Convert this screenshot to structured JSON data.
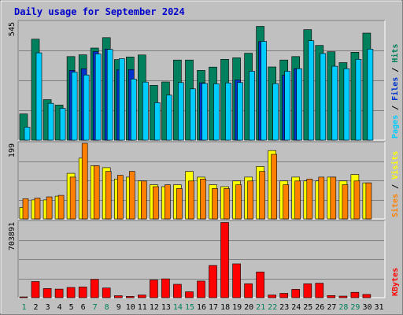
{
  "chart_data": {
    "type": "bar",
    "title": "Daily usage for September 2024",
    "categories": [
      "1",
      "2",
      "3",
      "4",
      "5",
      "6",
      "7",
      "8",
      "9",
      "10",
      "11",
      "12",
      "13",
      "14",
      "15",
      "16",
      "17",
      "18",
      "19",
      "20",
      "21",
      "22",
      "23",
      "24",
      "25",
      "26",
      "27",
      "28",
      "29",
      "30",
      "31"
    ],
    "weekend_days": [
      "1",
      "7",
      "8",
      "14",
      "15",
      "21",
      "22",
      "28",
      "29"
    ],
    "panels": [
      {
        "name": "hits-files-pages",
        "max_label": "545",
        "ylim": [
          0,
          545
        ],
        "side_labels": [
          {
            "text": "Pages",
            "color": "#00ccff"
          },
          {
            "text": "Files",
            "color": "#0033cc"
          },
          {
            "text": "Hits",
            "color": "#00805c"
          }
        ],
        "series": [
          {
            "name": "Hits",
            "color": "#00805c",
            "values": [
              121,
              466,
              187,
              162,
              386,
              394,
              425,
              473,
              372,
              384,
              393,
              253,
              269,
              370,
              370,
              322,
              337,
              373,
              380,
              401,
              525,
              338,
              370,
              386,
              510,
              437,
              408,
              358,
              406,
              494,
              0
            ]
          },
          {
            "name": "Files",
            "color": "#0033cc",
            "values": [
              0,
              0,
              0,
              0,
              322,
              330,
              409,
              420,
              325,
              326,
              0,
              0,
              0,
              0,
              0,
              265,
              0,
              0,
              278,
              0,
              455,
              0,
              300,
              330,
              0,
              0,
              0,
              0,
              0,
              0,
              0
            ]
          },
          {
            "name": "Pages",
            "color": "#00ccff",
            "values": [
              60,
              403,
              170,
              147,
              314,
              301,
              398,
              419,
              376,
              282,
              268,
              173,
              208,
              266,
              237,
              262,
              260,
              264,
              266,
              318,
              456,
              261,
              318,
              330,
              459,
              400,
              341,
              330,
              373,
              420,
              0
            ]
          }
        ]
      },
      {
        "name": "visits-sites",
        "max_label": "199",
        "ylim": [
          0,
          199
        ],
        "side_labels": [
          {
            "text": "Sites",
            "color": "#ff8000"
          },
          {
            "text": "Visits",
            "color": "#ffff00"
          }
        ],
        "series": [
          {
            "name": "Visits",
            "color": "#ffff00",
            "values": [
              30,
              50,
              50,
              60,
              120,
              160,
              140,
              135,
              105,
              110,
              100,
              90,
              85,
              90,
              125,
              110,
              90,
              85,
              100,
              110,
              138,
              180,
              100,
              110,
              100,
              100,
              110,
              100,
              117,
              95,
              0
            ]
          },
          {
            "name": "Sites",
            "color": "#ff8000",
            "values": [
              53,
              55,
              58,
              62,
              110,
              199,
              140,
              125,
              115,
              125,
              100,
              85,
              90,
              80,
              100,
              105,
              80,
              80,
              90,
              100,
              125,
              170,
              90,
              100,
              105,
              110,
              110,
              90,
              100,
              95,
              0
            ]
          }
        ]
      },
      {
        "name": "kbytes",
        "max_label": "703891",
        "ylim": [
          0,
          703891
        ],
        "side_labels": [
          {
            "text": "KBytes",
            "color": "#ff0000"
          }
        ],
        "series": [
          {
            "name": "KBytes",
            "color": "#ff0000",
            "values": [
              5000,
              150000,
              85000,
              80000,
              95000,
              100000,
              170000,
              90000,
              18000,
              12000,
              25000,
              165000,
              175000,
              125000,
              55000,
              155000,
              300000,
              700000,
              315000,
              130000,
              240000,
              25000,
              40000,
              78000,
              130000,
              135000,
              20000,
              15000,
              50000,
              30000,
              0
            ]
          }
        ]
      }
    ]
  }
}
